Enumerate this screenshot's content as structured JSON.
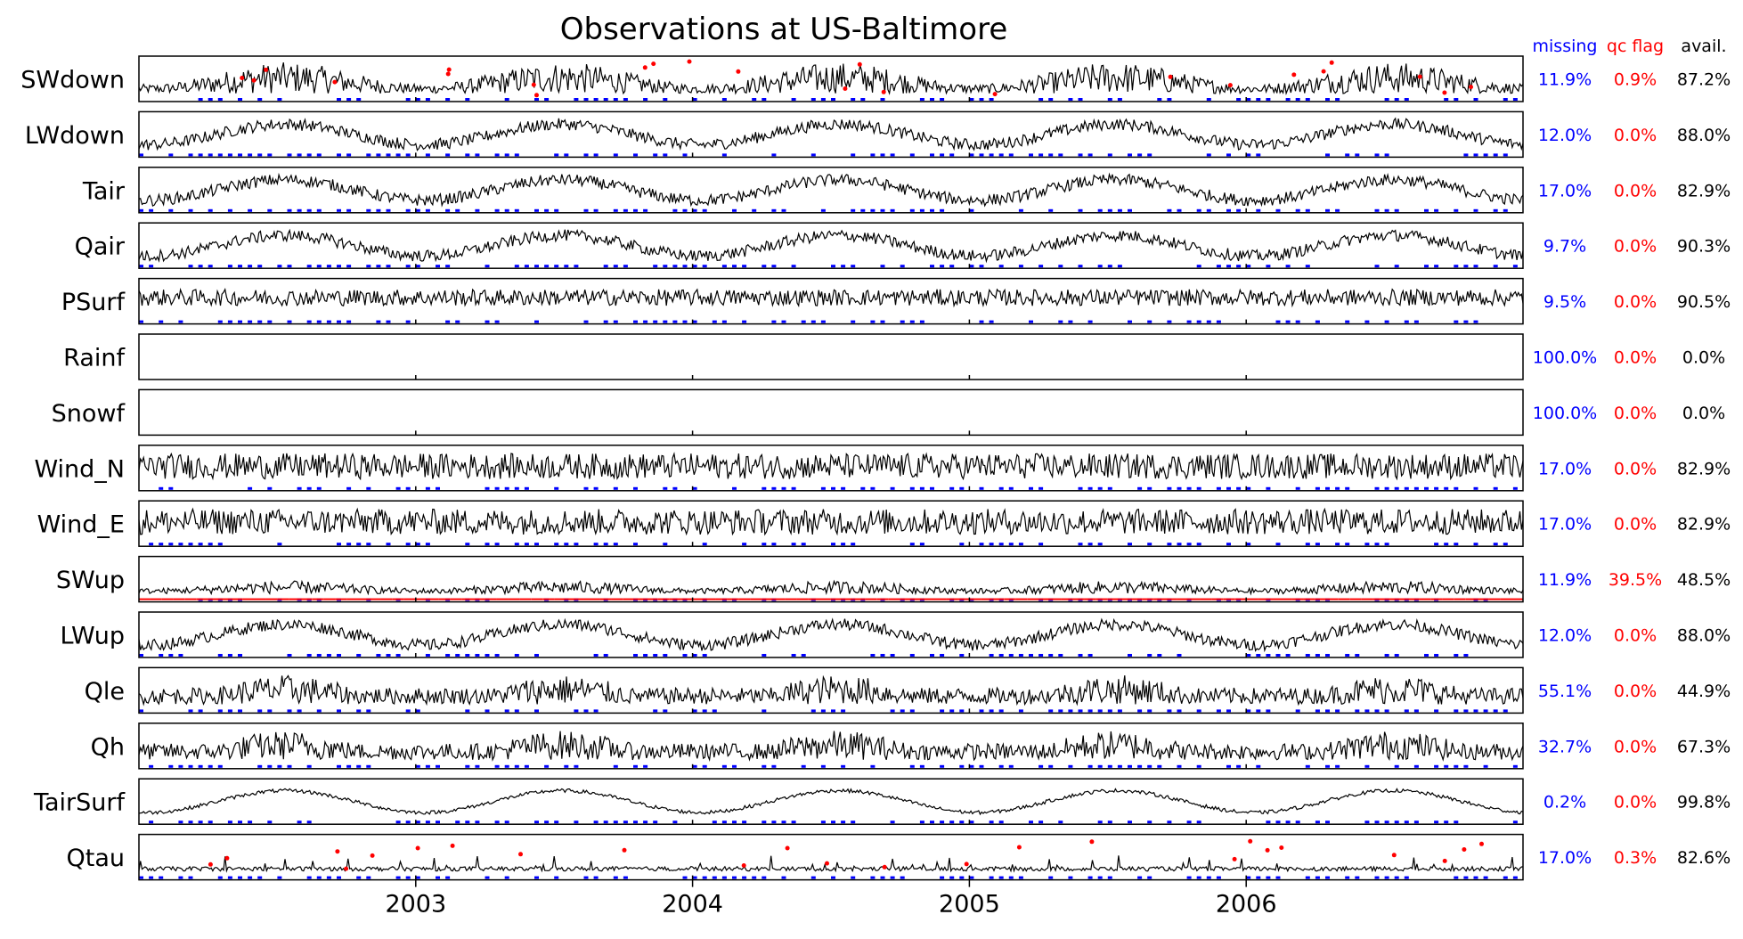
{
  "chart_data": {
    "type": "line",
    "title": "Observations at US-Baltimore",
    "x_ticks": [
      "2003",
      "2004",
      "2005",
      "2006"
    ],
    "xlim": [
      "2002-01-01",
      "2006-12-31"
    ],
    "stat_headers": {
      "missing": "missing",
      "qc_flag": "qc flag",
      "avail": "avail."
    },
    "colors": {
      "observed": "#000000",
      "missing": "#0000ff",
      "qc_flag": "#ff0000",
      "avail": "#000000",
      "gapfill": "#d4d400"
    },
    "series": [
      {
        "name": "SWdown",
        "missing": "11.9%",
        "qc_flag": "0.9%",
        "avail": "87.2%"
      },
      {
        "name": "LWdown",
        "missing": "12.0%",
        "qc_flag": "0.0%",
        "avail": "88.0%"
      },
      {
        "name": "Tair",
        "missing": "17.0%",
        "qc_flag": "0.0%",
        "avail": "82.9%"
      },
      {
        "name": "Qair",
        "missing": "9.7%",
        "qc_flag": "0.0%",
        "avail": "90.3%"
      },
      {
        "name": "PSurf",
        "missing": "9.5%",
        "qc_flag": "0.0%",
        "avail": "90.5%"
      },
      {
        "name": "Rainf",
        "missing": "100.0%",
        "qc_flag": "0.0%",
        "avail": "0.0%"
      },
      {
        "name": "Snowf",
        "missing": "100.0%",
        "qc_flag": "0.0%",
        "avail": "0.0%"
      },
      {
        "name": "Wind_N",
        "missing": "17.0%",
        "qc_flag": "0.0%",
        "avail": "82.9%"
      },
      {
        "name": "Wind_E",
        "missing": "17.0%",
        "qc_flag": "0.0%",
        "avail": "82.9%"
      },
      {
        "name": "SWup",
        "missing": "11.9%",
        "qc_flag": "39.5%",
        "avail": "48.5%"
      },
      {
        "name": "LWup",
        "missing": "12.0%",
        "qc_flag": "0.0%",
        "avail": "88.0%"
      },
      {
        "name": "Qle",
        "missing": "55.1%",
        "qc_flag": "0.0%",
        "avail": "44.9%"
      },
      {
        "name": "Qh",
        "missing": "32.7%",
        "qc_flag": "0.0%",
        "avail": "67.3%"
      },
      {
        "name": "TairSurf",
        "missing": "0.2%",
        "qc_flag": "0.0%",
        "avail": "99.8%"
      },
      {
        "name": "Qtau",
        "missing": "17.0%",
        "qc_flag": "0.3%",
        "avail": "82.6%"
      }
    ]
  }
}
